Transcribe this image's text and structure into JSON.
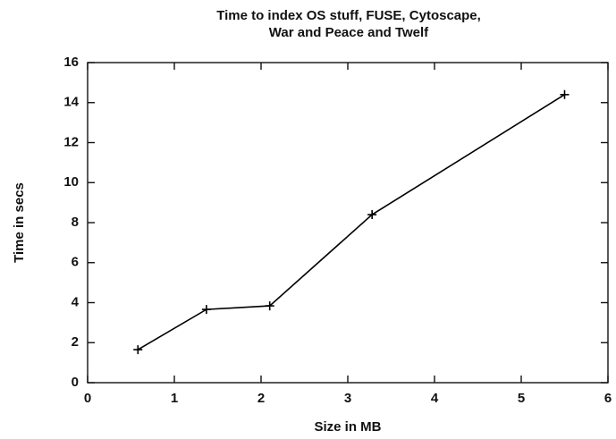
{
  "chart_data": {
    "type": "line",
    "title": [
      "Time to index OS stuff, FUSE, Cytoscape,",
      "War and Peace and Twelf"
    ],
    "x_label": "Size in MB",
    "y_label": "Time in secs",
    "x": [
      0.58,
      1.37,
      2.1,
      3.28,
      5.5
    ],
    "series": [
      {
        "color": "#000000",
        "values": [
          1.65,
          3.66,
          3.84,
          8.4,
          14.4
        ]
      }
    ],
    "xlim": [
      0,
      6
    ],
    "xticks": [
      0,
      1,
      2,
      3,
      4,
      5,
      6
    ],
    "ylim": [
      0,
      16
    ],
    "yticks": [
      0,
      2,
      4,
      6,
      8,
      10,
      12,
      14,
      16
    ],
    "grid": false
  }
}
